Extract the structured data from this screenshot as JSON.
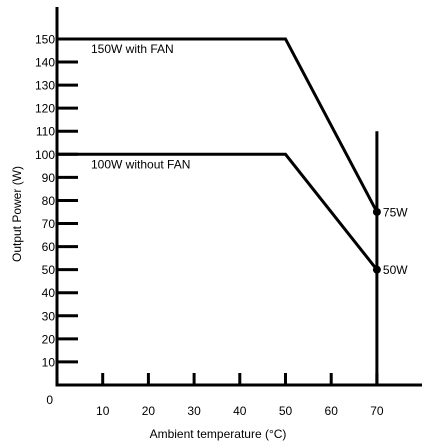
{
  "chart_data": {
    "type": "line",
    "xlabel": "Ambient temperature (°C)",
    "ylabel": "Output Power (W)",
    "xlim": [
      0,
      80
    ],
    "ylim": [
      0,
      160
    ],
    "x_ticks": [
      10,
      20,
      30,
      40,
      50,
      60,
      70
    ],
    "y_ticks": [
      10,
      20,
      30,
      40,
      50,
      60,
      70,
      80,
      90,
      100,
      110,
      120,
      130,
      140,
      150
    ],
    "origin_label": "0",
    "grid": false,
    "series": [
      {
        "name": "150W with FAN",
        "x": [
          0,
          50,
          70
        ],
        "y": [
          150,
          150,
          75
        ],
        "end_label": "75W"
      },
      {
        "name": "100W without FAN",
        "x": [
          0,
          50,
          70
        ],
        "y": [
          100,
          100,
          50
        ],
        "end_label": "50W"
      }
    ],
    "vertical_line": {
      "x": 70,
      "y_range": [
        0,
        110
      ]
    },
    "colors": {
      "line": "#000000"
    }
  }
}
